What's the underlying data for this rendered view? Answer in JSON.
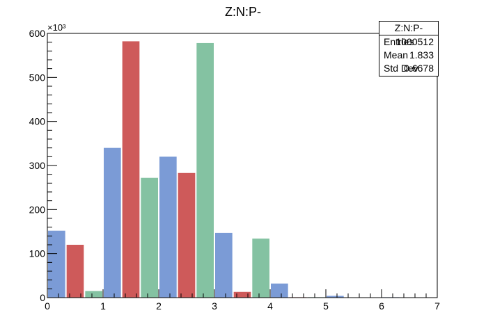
{
  "chart_data": {
    "type": "bar",
    "title": "Z:N:P-",
    "xlabel": "",
    "ylabel": "",
    "xlim": [
      0,
      7
    ],
    "ylim": [
      0,
      600
    ],
    "y_multiplier_label": "×10³",
    "x_ticks": [
      "0",
      "1",
      "2",
      "3",
      "4",
      "5",
      "6",
      "7"
    ],
    "y_ticks": [
      "0",
      "100",
      "200",
      "300",
      "400",
      "500",
      "600"
    ],
    "grid": false,
    "legend": "none",
    "categories": [
      "0",
      "1",
      "2",
      "3",
      "4",
      "5",
      "6"
    ],
    "series": [
      {
        "color": "#7b9bd6",
        "values": [
          152,
          340,
          320,
          147,
          32,
          4,
          1
        ]
      },
      {
        "color": "#ce5a5a",
        "values": [
          120,
          582,
          283,
          13,
          1,
          0,
          0
        ]
      },
      {
        "color": "#84c2a2",
        "values": [
          15,
          272,
          578,
          134,
          1,
          0,
          0
        ]
      }
    ]
  },
  "stats_box": {
    "title": "Z:N:P-",
    "entries_label": "Entries",
    "entries_value": "1000512",
    "mean_label": "Mean",
    "mean_value": "1.833",
    "stddev_label": "Std Dev",
    "stddev_value": "0.6678"
  }
}
